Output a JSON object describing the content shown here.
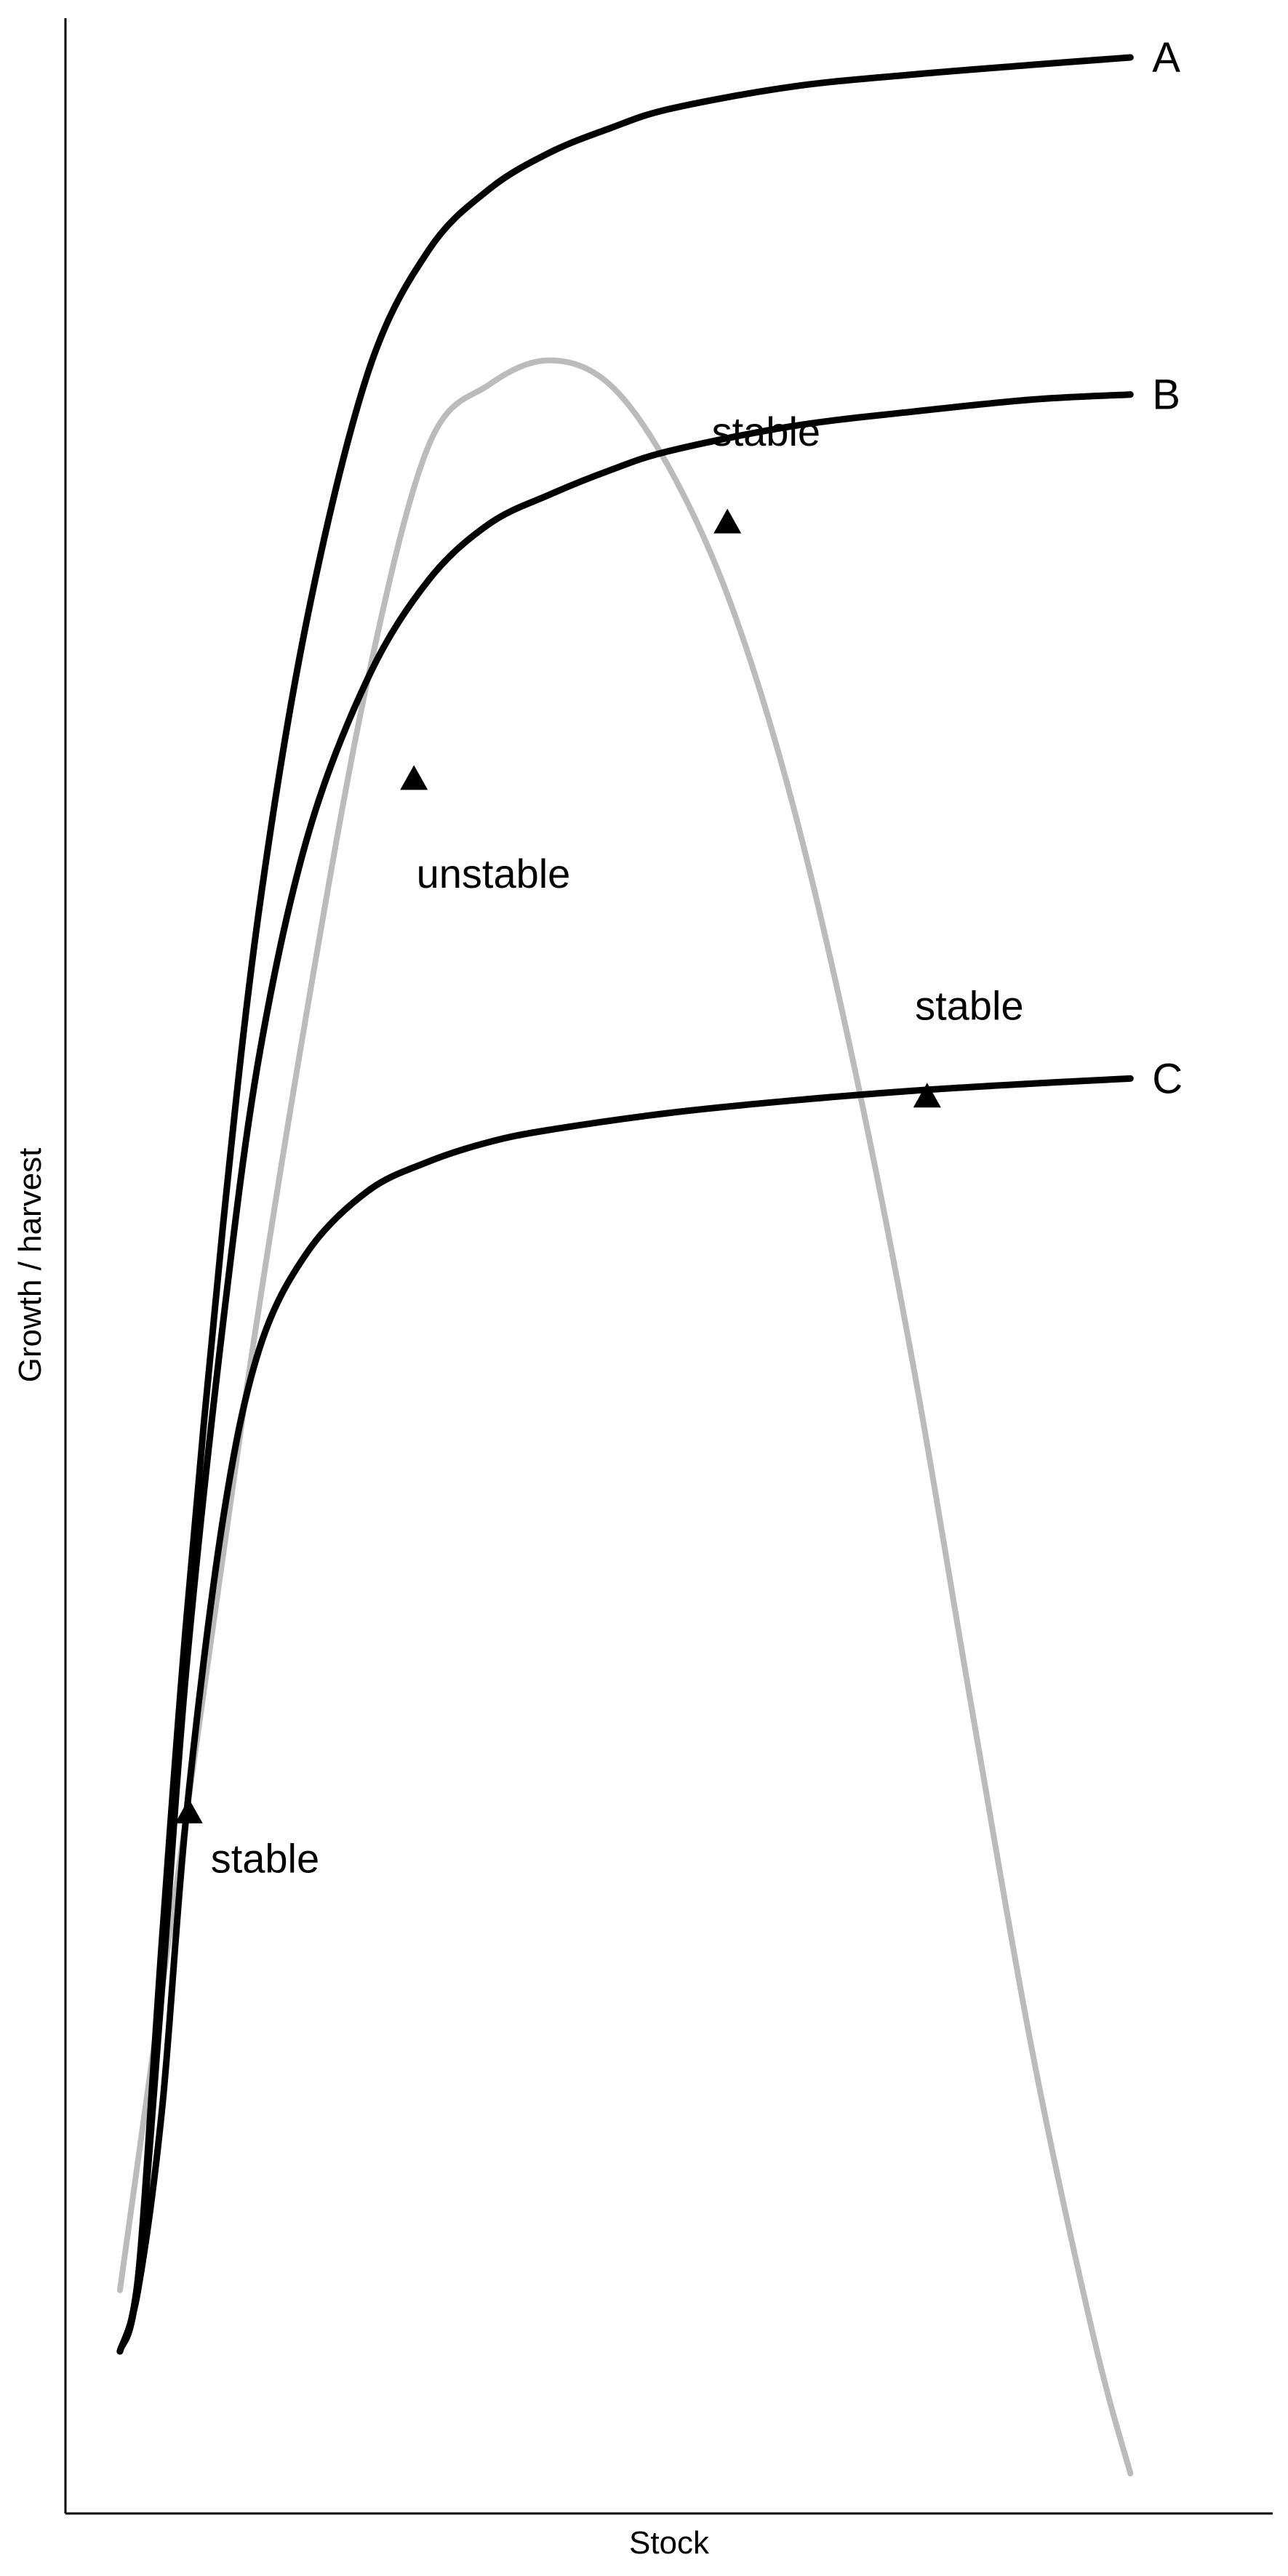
{
  "chart_data": {
    "type": "line",
    "xlabel": "Stock",
    "ylabel": "Growth / harvest",
    "xlim": [
      0,
      10
    ],
    "ylim": [
      0,
      10
    ],
    "grid": false,
    "ticks": "none",
    "series": [
      {
        "name": "A",
        "color": "#000000",
        "x": [
          0.45,
          0.6,
          0.8,
          1.0,
          1.3,
          1.6,
          2.0,
          2.5,
          3.0,
          3.5,
          4.0,
          4.5,
          5.0,
          6.0,
          7.0,
          8.0,
          8.8
        ],
        "y": [
          0.5,
          0.8,
          2.2,
          3.5,
          5.1,
          6.4,
          7.6,
          8.6,
          9.1,
          9.35,
          9.5,
          9.6,
          9.68,
          9.77,
          9.82,
          9.86,
          9.89
        ]
      },
      {
        "name": "B",
        "color": "#000000",
        "x": [
          0.45,
          0.6,
          0.8,
          1.0,
          1.3,
          1.6,
          2.0,
          2.5,
          3.0,
          3.5,
          4.0,
          4.5,
          5.0,
          6.0,
          7.0,
          8.0,
          8.8
        ],
        "y": [
          0.5,
          0.8,
          2.0,
          3.3,
          4.7,
          5.8,
          6.7,
          7.35,
          7.75,
          7.98,
          8.1,
          8.2,
          8.28,
          8.38,
          8.44,
          8.49,
          8.51
        ]
      },
      {
        "name": "C",
        "color": "#000000",
        "x": [
          0.45,
          0.6,
          0.8,
          1.0,
          1.3,
          1.6,
          2.0,
          2.5,
          3.0,
          3.5,
          4.0,
          5.0,
          6.0,
          7.0,
          8.0,
          8.8
        ],
        "y": [
          0.5,
          0.75,
          1.5,
          2.7,
          3.9,
          4.6,
          5.0,
          5.25,
          5.37,
          5.45,
          5.5,
          5.57,
          5.62,
          5.66,
          5.69,
          5.71
        ]
      },
      {
        "name": "",
        "color": "#bbbbbb",
        "x": [
          0.45,
          1.0,
          1.5,
          2.0,
          2.5,
          3.0,
          3.5,
          4.0,
          4.5,
          5.0,
          5.5,
          6.0,
          6.5,
          7.0,
          7.5,
          8.0,
          8.5,
          8.8
        ],
        "y": [
          0.75,
          2.7,
          4.45,
          6.0,
          7.35,
          8.3,
          8.55,
          8.65,
          8.55,
          8.2,
          7.65,
          6.85,
          5.8,
          4.55,
          3.1,
          1.7,
          0.55,
          0.0
        ]
      }
    ],
    "equilibria": [
      {
        "x": 1.02,
        "y": 2.7,
        "label": "stable",
        "label_dx": 0.18,
        "label_dy": -0.18
      },
      {
        "x": 2.88,
        "y": 6.93,
        "label": "unstable",
        "label_dx": 0.02,
        "label_dy": -0.38
      },
      {
        "x": 5.47,
        "y": 7.98,
        "label": "stable",
        "label_dx": -0.13,
        "label_dy": 0.38
      },
      {
        "x": 7.12,
        "y": 5.63,
        "label": "stable",
        "label_dx": -0.1,
        "label_dy": 0.38
      }
    ]
  }
}
